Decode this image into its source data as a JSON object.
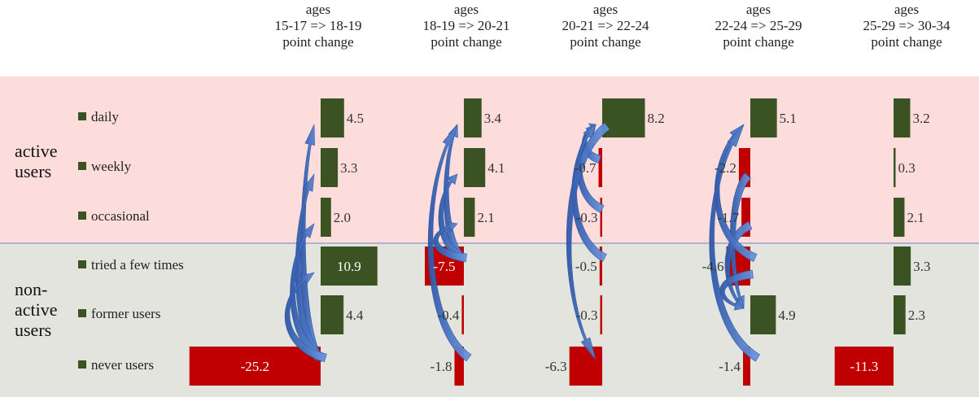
{
  "colors": {
    "active_band": "#fddcdc",
    "nonactive_band": "#e3e4de",
    "divider": "#6f84c4",
    "positive": "#3b5323",
    "negative": "#c00000",
    "arrow": "#4a78c8"
  },
  "groups": [
    {
      "label_line1": "active",
      "label_line2": "users"
    },
    {
      "label_line1": "non-",
      "label_line2": "active",
      "label_line3": "users"
    }
  ],
  "chart_data": {
    "type": "bar",
    "categories": [
      "daily",
      "weekly",
      "occasional",
      "tried a few times",
      "former users",
      "never users"
    ],
    "panels": [
      {
        "header_line1": "ages",
        "header_line2": "15-17 => 18-19",
        "header_line3": "point change",
        "values": [
          4.5,
          3.3,
          2.0,
          10.9,
          4.4,
          -25.2
        ],
        "labels": [
          "4.5",
          "3.3",
          "2.0",
          "10.9",
          "4.4",
          "-25.2"
        ]
      },
      {
        "header_line1": "ages",
        "header_line2": "18-19 => 20-21",
        "header_line3": "point change",
        "values": [
          3.4,
          4.1,
          2.1,
          -7.5,
          -0.4,
          -1.8
        ],
        "labels": [
          "3.4",
          "4.1",
          "2.1",
          "-7.5",
          "-0.4",
          "-1.8"
        ]
      },
      {
        "header_line1": "ages",
        "header_line2": "20-21 => 22-24",
        "header_line3": "point change",
        "values": [
          8.2,
          -0.7,
          -0.3,
          -0.5,
          -0.3,
          -6.3
        ],
        "labels": [
          "8.2",
          "-0.7",
          "-0.3",
          "-0.5",
          "-0.3",
          "-6.3"
        ]
      },
      {
        "header_line1": "ages",
        "header_line2": "22-24 => 25-29",
        "header_line3": "point change",
        "values": [
          5.1,
          -2.2,
          -1.7,
          -4.6,
          4.9,
          -1.4
        ],
        "labels": [
          "5.1",
          "-2.2",
          "-1.7",
          "-4.6",
          "4.9",
          "-1.4"
        ]
      },
      {
        "header_line1": "ages",
        "header_line2": "25-29 => 30-34",
        "header_line3": "point change",
        "values": [
          3.2,
          0.3,
          2.1,
          3.3,
          2.3,
          -11.3
        ],
        "labels": [
          "3.2",
          "0.3",
          "2.1",
          "3.3",
          "2.3",
          "-11.3"
        ]
      }
    ],
    "flows": [
      {
        "panel": 0,
        "from": "never users",
        "to": "daily"
      },
      {
        "panel": 0,
        "from": "never users",
        "to": "weekly"
      },
      {
        "panel": 0,
        "from": "never users",
        "to": "occasional"
      },
      {
        "panel": 0,
        "from": "never users",
        "to": "tried a few times"
      },
      {
        "panel": 1,
        "from": "tried a few times",
        "to": "daily"
      },
      {
        "panel": 1,
        "from": "tried a few times",
        "to": "weekly"
      },
      {
        "panel": 1,
        "from": "tried a few times",
        "to": "occasional"
      },
      {
        "panel": 1,
        "from": "never users",
        "to": "daily"
      },
      {
        "panel": 2,
        "from": "weekly",
        "to": "daily"
      },
      {
        "panel": 2,
        "from": "occasional",
        "to": "daily"
      },
      {
        "panel": 2,
        "from": "tried a few times",
        "to": "daily"
      },
      {
        "panel": 2,
        "from": "daily",
        "to": "never users"
      },
      {
        "panel": 3,
        "from": "weekly",
        "to": "former users"
      },
      {
        "panel": 3,
        "from": "occasional",
        "to": "former users"
      },
      {
        "panel": 3,
        "from": "tried a few times",
        "to": "former users"
      },
      {
        "panel": 3,
        "from": "tried a few times",
        "to": "daily"
      },
      {
        "panel": 3,
        "from": "never users",
        "to": "daily"
      }
    ]
  }
}
